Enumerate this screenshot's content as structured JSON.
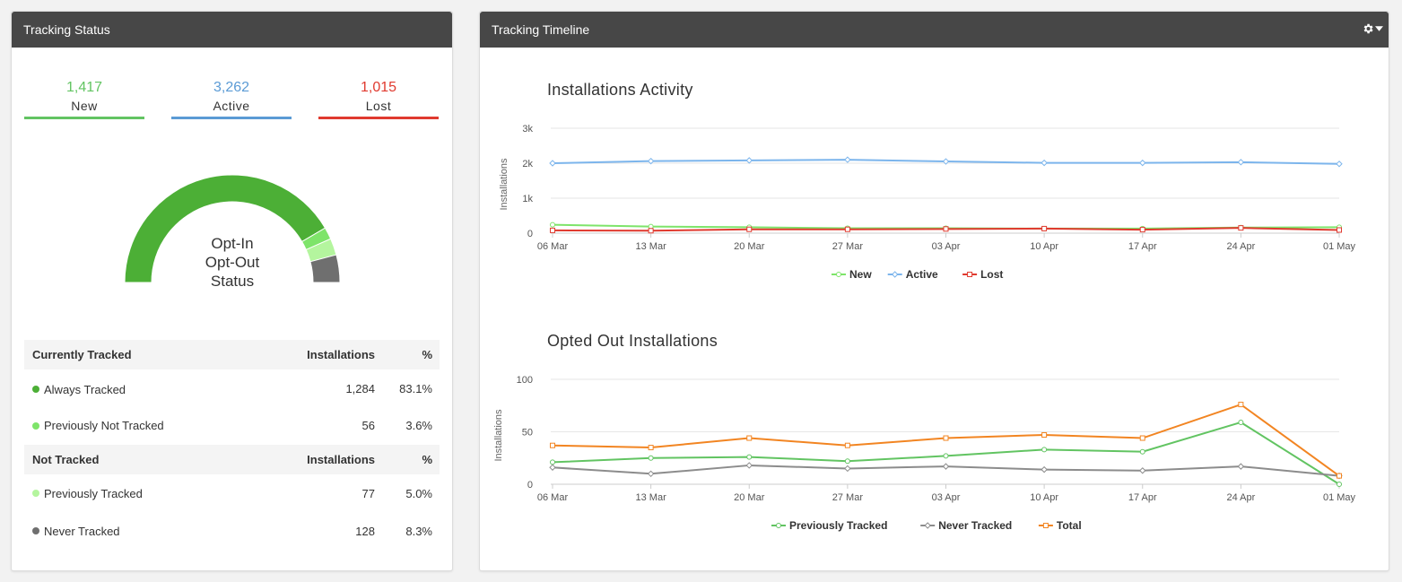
{
  "left_panel": {
    "title": "Tracking Status",
    "stats": [
      {
        "value": "1,417",
        "label": "New",
        "color": "#62c462"
      },
      {
        "value": "3,262",
        "label": "Active",
        "color": "#5b9bd5"
      },
      {
        "value": "1,015",
        "label": "Lost",
        "color": "#e03a2f"
      }
    ],
    "gauge": {
      "label_lines": [
        "Opt-In",
        "Opt-Out",
        "Status"
      ],
      "segments": [
        {
          "name": "Always Tracked",
          "percent": 83.1,
          "color": "#4caf36"
        },
        {
          "name": "Previously Not Tracked",
          "percent": 3.6,
          "color": "#7ee46a"
        },
        {
          "name": "Previously Tracked",
          "percent": 5.0,
          "color": "#b4f59e"
        },
        {
          "name": "Never Tracked",
          "percent": 8.3,
          "color": "#6f6f6f"
        }
      ]
    },
    "tables": [
      {
        "heading": "Currently Tracked",
        "col_installations": "Installations",
        "col_percent": "%",
        "rows": [
          {
            "label": "Always Tracked",
            "installations": "1,284",
            "percent": "83.1%",
            "color": "#4caf36"
          },
          {
            "label": "Previously Not Tracked",
            "installations": "56",
            "percent": "3.6%",
            "color": "#7ee46a"
          }
        ]
      },
      {
        "heading": "Not Tracked",
        "col_installations": "Installations",
        "col_percent": "%",
        "rows": [
          {
            "label": "Previously Tracked",
            "installations": "77",
            "percent": "5.0%",
            "color": "#b4f59e"
          },
          {
            "label": "Never Tracked",
            "installations": "128",
            "percent": "8.3%",
            "color": "#6f6f6f"
          }
        ]
      }
    ]
  },
  "right_panel": {
    "title": "Tracking Timeline",
    "settings_icon": "gear-icon"
  },
  "chart_data": [
    {
      "type": "line",
      "title": "Installations Activity",
      "ylabel": "Installations",
      "x": [
        "06 Mar",
        "13 Mar",
        "20 Mar",
        "27 Mar",
        "03 Apr",
        "10 Apr",
        "17 Apr",
        "24 Apr",
        "01 May"
      ],
      "ylim": [
        0,
        3000
      ],
      "yticks": [
        0,
        1000,
        2000,
        3000
      ],
      "ytick_labels": [
        "0",
        "1k",
        "2k",
        "3k"
      ],
      "grid": true,
      "legend": "bottom-center",
      "series": [
        {
          "name": "New",
          "color": "#7ee46a",
          "marker": "circle",
          "values": [
            240,
            190,
            170,
            140,
            140,
            130,
            130,
            160,
            170
          ]
        },
        {
          "name": "Active",
          "color": "#7cb5ec",
          "marker": "diamond",
          "values": [
            2000,
            2060,
            2080,
            2100,
            2050,
            2010,
            2010,
            2030,
            1980
          ]
        },
        {
          "name": "Lost",
          "color": "#e03a2f",
          "marker": "square",
          "values": [
            80,
            70,
            110,
            110,
            120,
            130,
            100,
            150,
            90
          ]
        }
      ]
    },
    {
      "type": "line",
      "title": "Opted Out Installations",
      "ylabel": "Installations",
      "x": [
        "06 Mar",
        "13 Mar",
        "20 Mar",
        "27 Mar",
        "03 Apr",
        "10 Apr",
        "17 Apr",
        "24 Apr",
        "01 May"
      ],
      "ylim": [
        0,
        100
      ],
      "yticks": [
        0,
        50,
        100
      ],
      "ytick_labels": [
        "0",
        "50",
        "100"
      ],
      "grid": true,
      "legend": "bottom-center",
      "series": [
        {
          "name": "Previously Tracked",
          "color": "#62c462",
          "marker": "circle",
          "values": [
            21,
            25,
            26,
            22,
            27,
            33,
            31,
            59,
            0
          ]
        },
        {
          "name": "Never Tracked",
          "color": "#8c8c8c",
          "marker": "diamond",
          "values": [
            16,
            10,
            18,
            15,
            17,
            14,
            13,
            17,
            8
          ]
        },
        {
          "name": "Total",
          "color": "#f28522",
          "marker": "square",
          "values": [
            37,
            35,
            44,
            37,
            44,
            47,
            44,
            76,
            8
          ]
        }
      ]
    }
  ]
}
